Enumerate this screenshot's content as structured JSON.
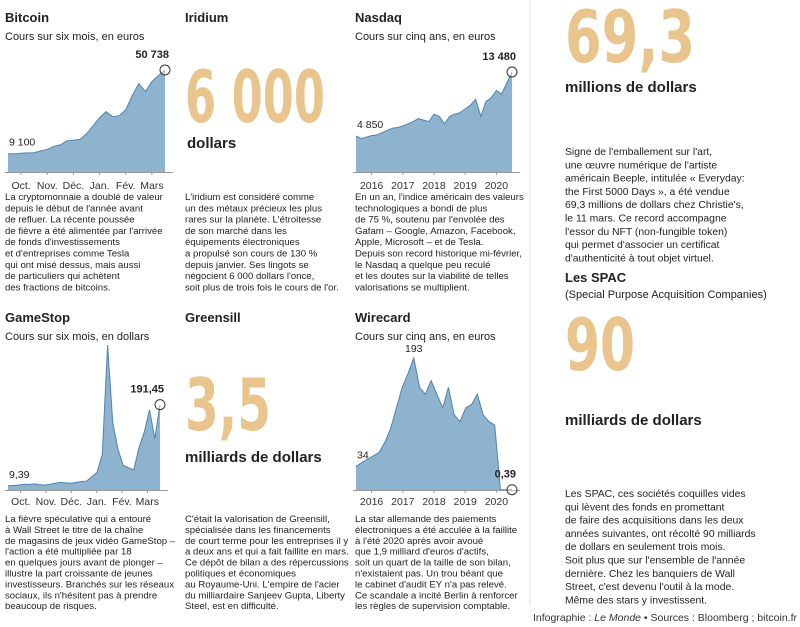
{
  "panels": [
    {
      "title": "Bitcoin",
      "subtitle": "Cours sur six mois, en euros",
      "chart": {
        "type": "area",
        "xticks": [
          "Oct.",
          "Nov.",
          "Déc.",
          "Jan.",
          "Fév.",
          "Mars"
        ],
        "values": [
          9100,
          9000,
          9300,
          9500,
          9600,
          10500,
          11200,
          12800,
          13500,
          15500,
          15800,
          16200,
          19000,
          23000,
          27000,
          30000,
          27500,
          28000,
          31000,
          38000,
          44000,
          40000,
          45000,
          48000,
          50738
        ],
        "value_labels": [
          "9 100",
          null,
          null,
          null,
          null,
          null,
          null,
          null,
          null,
          null,
          null,
          null,
          null,
          null,
          null,
          null,
          null,
          null,
          null,
          null,
          null,
          null,
          null,
          null,
          "50 738"
        ]
      },
      "text": [
        "La cryptomonnaie a doublé de valeur",
        "depuis le début de l'année avant",
        "de refluer. La récente poussée",
        "de fièvre a été alimentée par l'arrivée",
        "de fonds d'investissements",
        "et d'entreprises comme Tesla",
        "qui ont misé dessus, mais aussi",
        "de particuliers qui achètent",
        "des fractions de bitcoins."
      ]
    },
    {
      "title": "Iridium",
      "big_number": "6 000",
      "unit": "dollars",
      "text": [
        "L'iridium est considéré comme",
        "un des métaux précieux les plus",
        "rares sur la planète. L'étroitesse",
        "de son marché dans les",
        "équipements électroniques",
        "a propulsé son cours de 130 %",
        "depuis janvier. Ses lingots se",
        "négocient 6 000 dollars l'once,",
        "soit plus de trois fois le cours de l'or."
      ]
    },
    {
      "title": "Nasdaq",
      "subtitle": "Cours sur cinq ans, en euros",
      "chart": {
        "type": "area",
        "xticks": [
          "2016",
          "2017",
          "2018",
          "2019",
          "2020"
        ],
        "values": [
          4850,
          4500,
          4700,
          4900,
          5000,
          5300,
          5600,
          5900,
          6000,
          6200,
          6500,
          6800,
          7200,
          7000,
          6800,
          7800,
          7500,
          6500,
          7500,
          7800,
          8000,
          8500,
          9000,
          9800,
          7500,
          9500,
          10000,
          11000,
          10500,
          12000,
          13480
        ],
        "value_labels": [
          "4 850",
          null,
          null,
          null,
          null,
          null,
          null,
          null,
          null,
          null,
          null,
          null,
          null,
          null,
          null,
          null,
          null,
          null,
          null,
          null,
          null,
          null,
          null,
          null,
          null,
          null,
          null,
          null,
          null,
          null,
          "13 480"
        ]
      },
      "text": [
        "En un an, l'indice américain des valeurs",
        "technologiques a bondi de plus",
        "de 75 %, soutenu par l'envolée des",
        "Gafam – Google, Amazon, Facebook,",
        "Apple, Microsoft – et de Tesla.",
        "Depuis son record historique mi-février,",
        "le Nasdaq a quelque peu reculé",
        "et les doutes sur la viabilité de telles",
        "valorisations se multiplient."
      ]
    },
    {
      "title": "GameStop",
      "subtitle": "Cours sur six mois, en dollars",
      "chart": {
        "type": "area",
        "xticks": [
          "Oct.",
          "Nov.",
          "Déc.",
          "Jan.",
          "Fév.",
          "Mars"
        ],
        "values": [
          9.39,
          10,
          11,
          13,
          12,
          14,
          12,
          11,
          13,
          15,
          17,
          16,
          15,
          17,
          19,
          20,
          30,
          40,
          80,
          325,
          150,
          90,
          55,
          50,
          45,
          95,
          130,
          180,
          115,
          191.45
        ],
        "value_labels": [
          "9,39",
          null,
          null,
          null,
          null,
          null,
          null,
          null,
          null,
          null,
          null,
          null,
          null,
          null,
          null,
          null,
          null,
          null,
          null,
          null,
          null,
          null,
          null,
          null,
          null,
          null,
          null,
          null,
          null,
          "191,45"
        ]
      },
      "text": [
        "La fièvre spéculative qui a entouré",
        "à Wall Street le titre de la chaîne",
        "de magasins de jeux vidéo GameStop –",
        "l'action a été multipliée par 18",
        "en quelques jours avant de plonger –",
        "illustre la part croissante de jeunes",
        "investisseurs. Branchés sur les réseaux",
        "sociaux, ils n'hésitent pas à prendre",
        "beaucoup de risques."
      ]
    },
    {
      "title": "Greensill",
      "big_number": "3,5",
      "unit": "milliards de dollars",
      "text": [
        "C'était la valorisation de Greensill,",
        "spécialisée dans les financements",
        "de court terme pour les entreprises il y",
        "a deux ans et qui a fait faillite en mars.",
        "Ce dépôt de bilan a des répercussions",
        "politiques et économiques",
        "au Royaume-Uni. L'empire de l'acier",
        "du milliardaire Sanjeev Gupta, Liberty",
        "Steel, est en difficulté."
      ]
    },
    {
      "title": "Wirecard",
      "subtitle": "Cours sur cinq ans, en euros",
      "chart": {
        "type": "area",
        "xticks": [
          "2016",
          "2017",
          "2018",
          "2019",
          "2020"
        ],
        "values": [
          34,
          40,
          45,
          50,
          55,
          70,
          90,
          120,
          150,
          170,
          193,
          150,
          140,
          160,
          140,
          120,
          150,
          110,
          100,
          120,
          125,
          140,
          110,
          100,
          95,
          0.39,
          0.39,
          0.39
        ],
        "value_labels": [
          "34",
          null,
          null,
          null,
          null,
          null,
          null,
          null,
          null,
          null,
          "193",
          null,
          null,
          null,
          null,
          null,
          null,
          null,
          null,
          null,
          null,
          null,
          null,
          null,
          null,
          null,
          null,
          "0,39"
        ]
      },
      "text": [
        "La star allemande des paiements",
        "électroniques a été acculée à la faillite",
        "à l'été 2020 après avoir avoué",
        "que 1,9 milliard d'euros d'actifs,",
        "soit un quart de la taille de son bilan,",
        "n'existaient pas. Un trou béant que",
        "le cabinet d'audit EY n'a pas relevé.",
        "Ce scandale a incité Berlin à renforcer",
        "les règles de supervision comptable."
      ]
    },
    {
      "big_number": "69,3",
      "unit": "millions de dollars",
      "text": [
        "Signe de l'emballement sur l'art,",
        "une œuvre numérique de l'artiste",
        "américain Beeple, intitulée « Everyday:",
        "the First 5000 Days », a été vendue",
        "69,3 millions de dollars chez Christie's,",
        "le 11 mars. Ce record accompagne",
        "l'essor du NFT (non-fungible token)",
        "qui permet d'associer un certificat",
        "d'authenticité à tout objet virtuel."
      ]
    },
    {
      "title": "Les SPAC",
      "subtitle": "(Special Purpose Acquisition Companies)",
      "big_number": "90",
      "unit": "milliards de dollars",
      "text": [
        "Les SPAC, ces sociétés coquilles vides",
        "qui lèvent des fonds en promettant",
        "de faire des acquisitions dans les deux",
        "années suivantes, ont récolté 90 milliards",
        "de dollars en seulement trois mois.",
        "Soit plus que sur l'ensemble de l'année",
        "dernière. Chez les banquiers de Wall",
        "Street, c'est devenu l'outil à la mode.",
        "Même des stars y investissent."
      ]
    }
  ],
  "footer": {
    "prefix": "Infographie : ",
    "source_name": "Le Monde",
    "sources": " • Sources : Bloomberg ; bitcoin.fr"
  }
}
